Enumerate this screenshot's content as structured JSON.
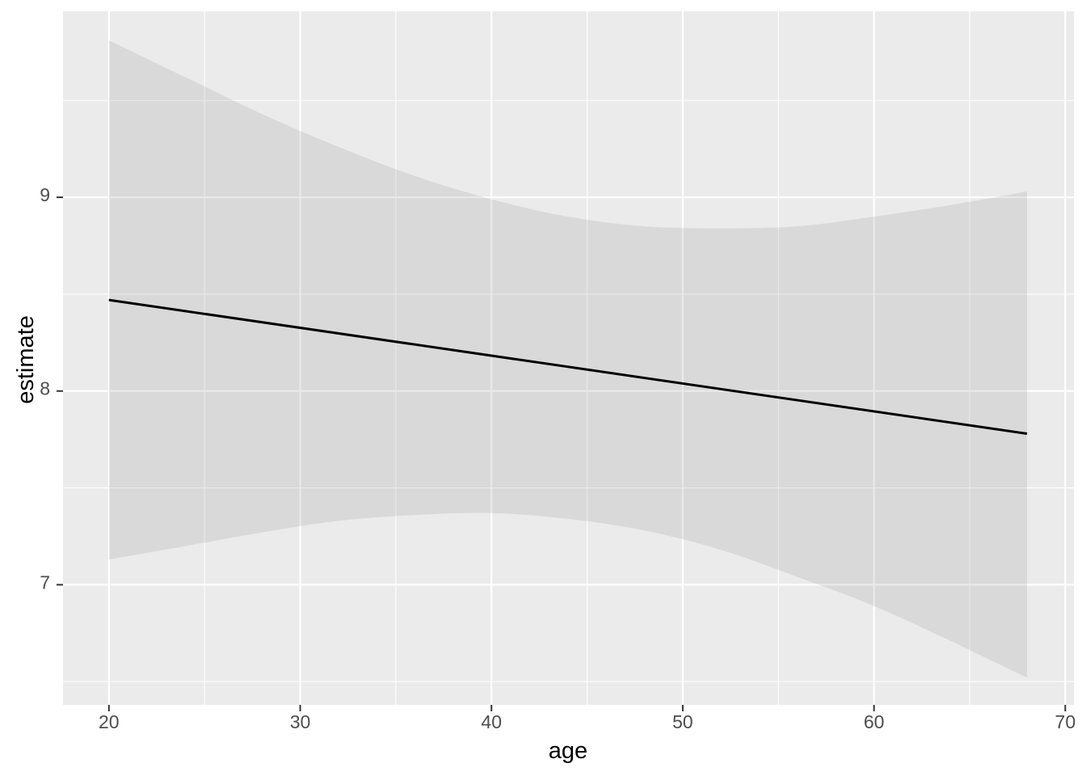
{
  "figure": {
    "background": "#FFFFFF",
    "panel_background": "#EBEBEB",
    "grid_color": "#FFFFFF",
    "ribbon_color": "#999999",
    "ribbon_opacity": 0.22,
    "line_color": "#000000",
    "tick_mark_color": "#333333",
    "tick_label_color": "#4D4D4D",
    "axis_title_color": "#000000"
  },
  "chart_data": {
    "type": "line",
    "title": "",
    "xlabel": "age",
    "ylabel": "estimate",
    "xlim": [
      17.6,
      70.45
    ],
    "ylim": [
      6.38,
      9.96
    ],
    "x_ticks_major": [
      20,
      30,
      40,
      50,
      60,
      70
    ],
    "x_ticks_minor": [
      25,
      35,
      45,
      55,
      65
    ],
    "y_ticks_major": [
      7,
      8,
      9
    ],
    "y_ticks_minor": [
      6.5,
      7.5,
      8.5,
      9.5
    ],
    "grid": true,
    "legend": false,
    "series": [
      {
        "name": "linear-fit-line",
        "type": "line",
        "x": [
          20,
          68
        ],
        "y": [
          8.47,
          7.78
        ]
      },
      {
        "name": "confidence-ribbon",
        "type": "ribbon",
        "x": [
          20,
          24,
          28,
          32,
          36,
          40,
          44,
          48,
          52,
          56,
          60,
          64,
          68
        ],
        "upper": [
          9.81,
          9.62,
          9.43,
          9.26,
          9.11,
          8.99,
          8.9,
          8.85,
          8.84,
          8.85,
          8.9,
          8.96,
          9.03
        ],
        "lower": [
          7.13,
          7.2,
          7.27,
          7.33,
          7.36,
          7.37,
          7.34,
          7.28,
          7.18,
          7.04,
          6.89,
          6.71,
          6.52
        ]
      }
    ]
  }
}
